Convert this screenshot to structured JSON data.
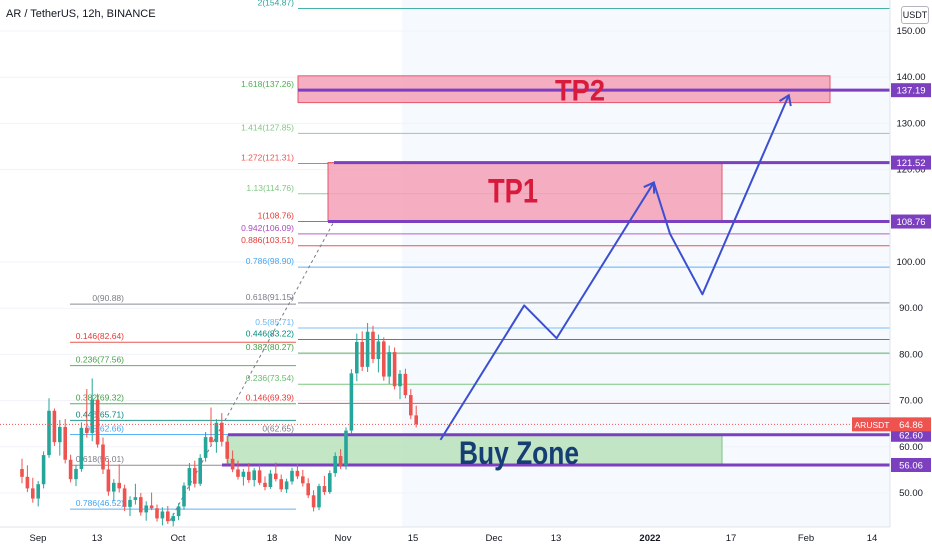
{
  "title": "AR / TetherUS, 12h, BINANCE",
  "currency_button": "USDT",
  "colors": {
    "up": "#26a69a",
    "down": "#ef5350",
    "path": "#3c4fd1",
    "purple": "#7b3fbf",
    "tp_fill": "#f5a0b8",
    "tp_text": "#d81b3c",
    "buy_fill": "#b9e2bc",
    "buy_text": "#153e72"
  },
  "price_axis": {
    "ticks": [
      "150.00",
      "140.00",
      "130.00",
      "120.00",
      "100.00",
      "90.00",
      "80.00",
      "70.00",
      "60.00",
      "50.00"
    ],
    "tick_values": [
      150,
      140,
      130,
      120,
      100,
      90,
      80,
      70,
      60,
      50
    ]
  },
  "time_axis": {
    "labels": [
      "Sep",
      "13",
      "Oct",
      "18",
      "Nov",
      "15",
      "Dec",
      "13",
      "2022",
      "17",
      "Feb",
      "14"
    ],
    "bold": "2022"
  },
  "price_tags": {
    "current": {
      "symbol": "ARUSDT",
      "value": "64.86",
      "num": 64.86
    },
    "levels": [
      "137.19",
      "121.52",
      "108.76",
      "62.60",
      "56.06"
    ],
    "level_values": [
      137.19,
      121.52,
      108.76,
      62.6,
      56.06
    ]
  },
  "zones": {
    "tp2": {
      "label": "TP2",
      "low": 134.5,
      "high": 140.3
    },
    "tp1": {
      "label": "TP1",
      "low": 108.76,
      "high": 121.52
    },
    "buy": {
      "label": "Buy Zone",
      "low": 56.06,
      "high": 62.6
    }
  },
  "fib_right": [
    {
      "label": "2(154.87)",
      "price": 154.87,
      "color": "#26a69a"
    },
    {
      "label": "1.618(137.26)",
      "price": 137.26,
      "color": "#4caf50"
    },
    {
      "label": "1.414(127.85)",
      "price": 127.85,
      "color": "#81c784"
    },
    {
      "label": "1.272(121.31)",
      "price": 121.31,
      "color": "#ef5350"
    },
    {
      "label": "1.13(114.76)",
      "price": 114.76,
      "color": "#81c784"
    },
    {
      "label": "1(108.76)",
      "price": 108.76,
      "color": "#e53935"
    },
    {
      "label": "0.942(106.09)",
      "price": 106.09,
      "color": "#ab47bc"
    },
    {
      "label": "0.886(103.51)",
      "price": 103.51,
      "color": "#e53935"
    },
    {
      "label": "0.786(98.90)",
      "price": 98.9,
      "color": "#42a5f5"
    },
    {
      "label": "0.618(91.15)",
      "price": 91.15,
      "color": "#787b86"
    },
    {
      "label": "0.5(85.71)",
      "price": 85.71,
      "color": "#64b5f6"
    },
    {
      "label": "0.446(83.22)",
      "price": 83.22,
      "color": "#00897b"
    },
    {
      "label": "0.382(80.27)",
      "price": 80.27,
      "color": "#43a047"
    },
    {
      "label": "0.236(73.54)",
      "price": 73.54,
      "color": "#66bb6a"
    },
    {
      "label": "0.146(69.39)",
      "price": 69.39,
      "color": "#e53935"
    },
    {
      "label": "0(62.65)",
      "price": 62.65,
      "color": "#787b86"
    }
  ],
  "fib_left": [
    {
      "label": "0(90.88)",
      "price": 90.88,
      "color": "#787b86"
    },
    {
      "label": "0.146(82.64)",
      "price": 82.64,
      "color": "#e53935"
    },
    {
      "label": "0.236(77.56)",
      "price": 77.56,
      "color": "#43a047"
    },
    {
      "label": "0.382(69.32)",
      "price": 69.32,
      "color": "#43a047"
    },
    {
      "label": "0.446(65.71)",
      "price": 65.71,
      "color": "#00897b"
    },
    {
      "label": "0.5(62.66)",
      "price": 62.66,
      "color": "#42a5f5"
    },
    {
      "label": "0.618(56.01)",
      "price": 56.01,
      "color": "#787b86"
    },
    {
      "label": "0.786(46.52)",
      "price": 46.52,
      "color": "#42a5f5"
    }
  ],
  "chart_data": {
    "type": "candlestick",
    "title": "AR / TetherUS, 12h, BINANCE",
    "price_range": [
      43,
      157
    ],
    "candles_ohlc": [
      [
        55.2,
        57.4,
        52.1,
        53.5
      ],
      [
        53.5,
        56.0,
        50.2,
        51.0
      ],
      [
        51.0,
        53.3,
        47.9,
        48.8
      ],
      [
        48.8,
        52.6,
        47.1,
        51.9
      ],
      [
        51.9,
        59.0,
        51.0,
        58.2
      ],
      [
        58.2,
        70.5,
        57.6,
        67.8
      ],
      [
        67.8,
        68.3,
        60.2,
        61.0
      ],
      [
        61.0,
        65.8,
        58.1,
        64.3
      ],
      [
        64.3,
        66.0,
        56.4,
        57.2
      ],
      [
        57.2,
        58.3,
        52.3,
        53.0
      ],
      [
        53.0,
        56.1,
        51.5,
        55.2
      ],
      [
        55.2,
        65.3,
        54.6,
        64.1
      ],
      [
        64.1,
        72.5,
        62.0,
        63.0
      ],
      [
        63.0,
        74.8,
        61.2,
        70.2
      ],
      [
        70.2,
        71.5,
        59.8,
        60.5
      ],
      [
        60.5,
        62.0,
        54.1,
        55.1
      ],
      [
        55.1,
        57.1,
        49.4,
        50.3
      ],
      [
        50.3,
        53.0,
        48.2,
        52.2
      ],
      [
        52.2,
        56.2,
        50.1,
        51.0
      ],
      [
        51.0,
        51.8,
        46.1,
        47.0
      ],
      [
        47.0,
        49.3,
        45.0,
        48.5
      ],
      [
        48.5,
        52.0,
        47.5,
        49.1
      ],
      [
        49.1,
        50.0,
        45.1,
        45.8
      ],
      [
        45.8,
        48.2,
        44.0,
        47.3
      ],
      [
        47.3,
        50.1,
        46.3,
        46.7
      ],
      [
        46.7,
        47.5,
        43.8,
        44.5
      ],
      [
        44.5,
        46.9,
        43.0,
        46.0
      ],
      [
        46.0,
        47.2,
        43.3,
        43.9
      ],
      [
        43.9,
        45.6,
        42.8,
        45.0
      ],
      [
        45.0,
        47.8,
        44.1,
        47.1
      ],
      [
        47.1,
        52.3,
        46.4,
        51.6
      ],
      [
        51.6,
        56.5,
        50.5,
        55.4
      ],
      [
        55.4,
        57.0,
        51.2,
        52.0
      ],
      [
        52.0,
        58.4,
        51.5,
        57.6
      ],
      [
        57.6,
        63.2,
        56.8,
        62.1
      ],
      [
        62.1,
        68.5,
        60.3,
        61.0
      ],
      [
        61.0,
        66.0,
        58.7,
        65.2
      ],
      [
        65.2,
        67.3,
        60.1,
        61.1
      ],
      [
        61.1,
        62.4,
        56.2,
        57.4
      ],
      [
        57.4,
        59.2,
        54.5,
        55.1
      ],
      [
        55.1,
        57.0,
        52.9,
        53.5
      ],
      [
        53.5,
        55.2,
        51.6,
        54.6
      ],
      [
        54.6,
        56.5,
        52.2,
        52.8
      ],
      [
        52.8,
        55.4,
        51.4,
        54.9
      ],
      [
        54.9,
        56.1,
        51.7,
        52.2
      ],
      [
        52.2,
        53.6,
        50.6,
        51.3
      ],
      [
        51.3,
        55.0,
        50.9,
        54.2
      ],
      [
        54.2,
        56.6,
        52.5,
        53.0
      ],
      [
        53.0,
        54.0,
        50.2,
        50.8
      ],
      [
        50.8,
        53.1,
        50.0,
        52.5
      ],
      [
        52.5,
        55.5,
        51.8,
        54.8
      ],
      [
        54.8,
        56.2,
        53.0,
        53.6
      ],
      [
        53.6,
        55.0,
        51.4,
        52.1
      ],
      [
        52.1,
        53.2,
        48.9,
        49.5
      ],
      [
        49.5,
        50.6,
        46.0,
        46.9
      ],
      [
        46.9,
        52.0,
        46.3,
        51.5
      ],
      [
        51.5,
        53.7,
        49.6,
        50.2
      ],
      [
        50.2,
        54.9,
        49.8,
        54.3
      ],
      [
        54.3,
        58.8,
        53.5,
        58.0
      ],
      [
        58.0,
        59.5,
        55.2,
        55.9
      ],
      [
        55.9,
        64.2,
        55.1,
        63.5
      ],
      [
        63.5,
        76.8,
        62.8,
        75.9
      ],
      [
        75.9,
        84.5,
        74.2,
        82.7
      ],
      [
        82.7,
        85.0,
        76.4,
        77.3
      ],
      [
        77.3,
        86.8,
        76.2,
        84.9
      ],
      [
        84.9,
        86.2,
        78.1,
        79.0
      ],
      [
        79.0,
        84.3,
        76.1,
        82.8
      ],
      [
        82.8,
        83.7,
        74.3,
        75.2
      ],
      [
        75.2,
        81.9,
        73.6,
        80.5
      ],
      [
        80.5,
        81.5,
        72.4,
        73.1
      ],
      [
        73.1,
        76.6,
        70.3,
        75.8
      ],
      [
        75.8,
        76.9,
        70.5,
        71.2
      ],
      [
        71.2,
        72.5,
        66.0,
        66.8
      ],
      [
        66.8,
        68.9,
        64.2,
        64.9
      ]
    ],
    "projected_path": [
      [
        77.5,
        61.5
      ],
      [
        93,
        90.6
      ],
      [
        99,
        83.5
      ],
      [
        117,
        117.2
      ],
      [
        120,
        106.1
      ],
      [
        126,
        93.0
      ],
      [
        142,
        136.1
      ]
    ]
  }
}
